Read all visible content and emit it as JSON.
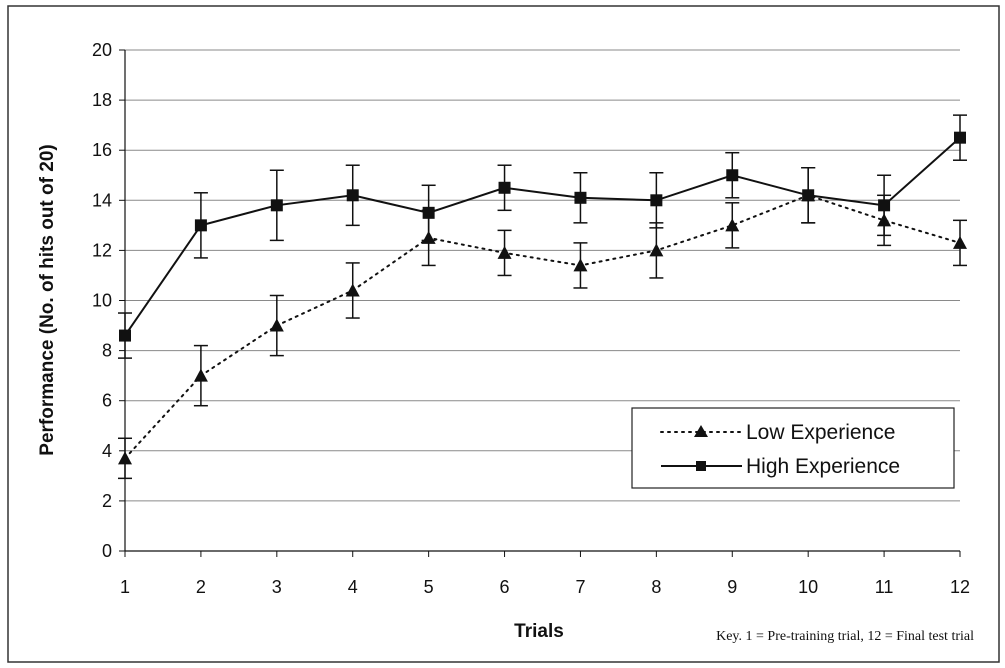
{
  "chart_data": {
    "type": "line",
    "title": "",
    "xlabel": "Trials",
    "ylabel": "Performance (No. of hits out of 20)",
    "x": [
      1,
      2,
      3,
      4,
      5,
      6,
      7,
      8,
      9,
      10,
      11,
      12
    ],
    "ylim": [
      0,
      20
    ],
    "yticks": [
      0,
      2,
      4,
      6,
      8,
      10,
      12,
      14,
      16,
      18,
      20
    ],
    "grid": "horizontal",
    "legend_position": "lower-right",
    "series": [
      {
        "name": "Low Experience",
        "marker": "triangle",
        "line_style": "dotted",
        "color": "#111111",
        "values": [
          3.7,
          7.0,
          9.0,
          10.4,
          12.5,
          11.9,
          11.4,
          12.0,
          13.0,
          14.2,
          13.2,
          12.3
        ],
        "error": [
          0.8,
          1.2,
          1.2,
          1.1,
          1.1,
          0.9,
          0.9,
          1.1,
          0.9,
          1.1,
          1.0,
          0.9
        ]
      },
      {
        "name": "High Experience",
        "marker": "square",
        "line_style": "solid",
        "color": "#111111",
        "values": [
          8.6,
          13.0,
          13.8,
          14.2,
          13.5,
          14.5,
          14.1,
          14.0,
          15.0,
          14.2,
          13.8,
          16.5
        ],
        "error": [
          0.9,
          1.3,
          1.4,
          1.2,
          1.1,
          0.9,
          1.0,
          1.1,
          0.9,
          1.1,
          1.2,
          0.9
        ]
      }
    ],
    "annotation": "Key. 1 = Pre-training trial, 12 = Final test trial"
  }
}
